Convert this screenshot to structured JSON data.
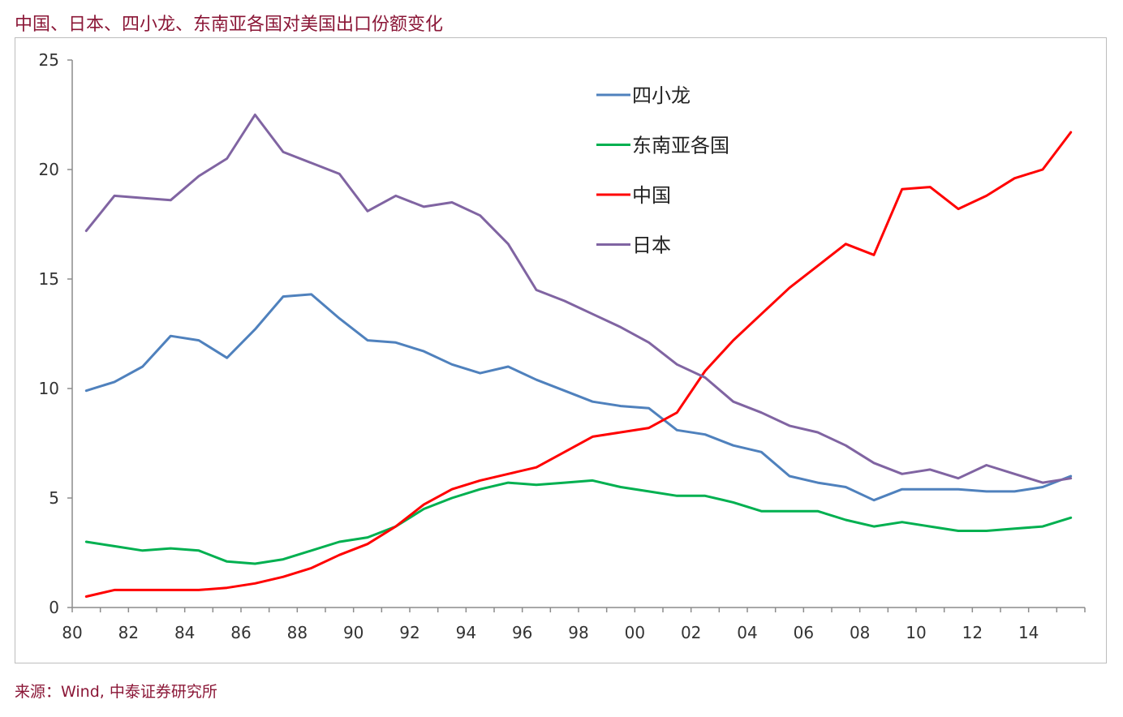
{
  "title": "中国、日本、四小龙、东南亚各国对美国出口份额变化",
  "source": "来源：Wind, 中泰证券研究所",
  "colors": {
    "title": "#8b1737",
    "axis": "#8c8c8c",
    "tick_text": "#333333"
  },
  "chart_data": {
    "type": "line",
    "title": "",
    "xlabel": "",
    "ylabel": "",
    "x": [
      "80",
      "81",
      "82",
      "83",
      "84",
      "85",
      "86",
      "87",
      "88",
      "89",
      "90",
      "91",
      "92",
      "93",
      "94",
      "95",
      "96",
      "97",
      "98",
      "99",
      "00",
      "01",
      "02",
      "03",
      "04",
      "05",
      "06",
      "07",
      "08",
      "09",
      "10",
      "11",
      "12",
      "13",
      "14",
      "15"
    ],
    "x_tick_labels": [
      "80",
      "82",
      "84",
      "86",
      "88",
      "90",
      "92",
      "94",
      "96",
      "98",
      "00",
      "02",
      "04",
      "06",
      "08",
      "10",
      "12",
      "14"
    ],
    "ylim": [
      0,
      25
    ],
    "y_ticks": [
      0,
      5,
      10,
      15,
      20,
      25
    ],
    "grid": false,
    "legend_position": "upper-center",
    "series": [
      {
        "name": "四小龙",
        "color": "#4f81bd",
        "values": [
          9.9,
          10.3,
          11.0,
          12.4,
          12.2,
          11.4,
          12.7,
          14.2,
          14.3,
          13.2,
          12.2,
          12.1,
          11.7,
          11.1,
          10.7,
          11.0,
          10.4,
          9.9,
          9.4,
          9.2,
          9.1,
          8.1,
          7.9,
          7.4,
          7.1,
          6.0,
          5.7,
          5.5,
          4.9,
          5.4,
          5.4,
          5.4,
          5.3,
          5.3,
          5.5,
          6.0
        ]
      },
      {
        "name": "东南亚各国",
        "color": "#00b050",
        "values": [
          3.0,
          2.8,
          2.6,
          2.7,
          2.6,
          2.1,
          2.0,
          2.2,
          2.6,
          3.0,
          3.2,
          3.7,
          4.5,
          5.0,
          5.4,
          5.7,
          5.6,
          5.7,
          5.8,
          5.5,
          5.3,
          5.1,
          5.1,
          4.8,
          4.4,
          4.4,
          4.4,
          4.0,
          3.7,
          3.9,
          3.7,
          3.5,
          3.5,
          3.6,
          3.7,
          4.1
        ]
      },
      {
        "name": "中国",
        "color": "#ff0000",
        "values": [
          0.5,
          0.8,
          0.8,
          0.8,
          0.8,
          0.9,
          1.1,
          1.4,
          1.8,
          2.4,
          2.9,
          3.7,
          4.7,
          5.4,
          5.8,
          6.1,
          6.4,
          7.1,
          7.8,
          8.0,
          8.2,
          8.9,
          10.8,
          12.2,
          13.4,
          14.6,
          15.6,
          16.6,
          16.1,
          19.1,
          19.2,
          18.2,
          18.8,
          19.6,
          20.0,
          21.7
        ]
      },
      {
        "name": "日本",
        "color": "#8064a2",
        "values": [
          17.2,
          18.8,
          18.7,
          18.6,
          19.7,
          20.5,
          22.5,
          20.8,
          20.3,
          19.8,
          18.1,
          18.8,
          18.3,
          18.5,
          17.9,
          16.6,
          14.5,
          14.0,
          13.4,
          12.8,
          12.1,
          11.1,
          10.5,
          9.4,
          8.9,
          8.3,
          8.0,
          7.4,
          6.6,
          6.1,
          6.3,
          5.9,
          6.5,
          6.1,
          5.7,
          5.9
        ]
      }
    ]
  }
}
